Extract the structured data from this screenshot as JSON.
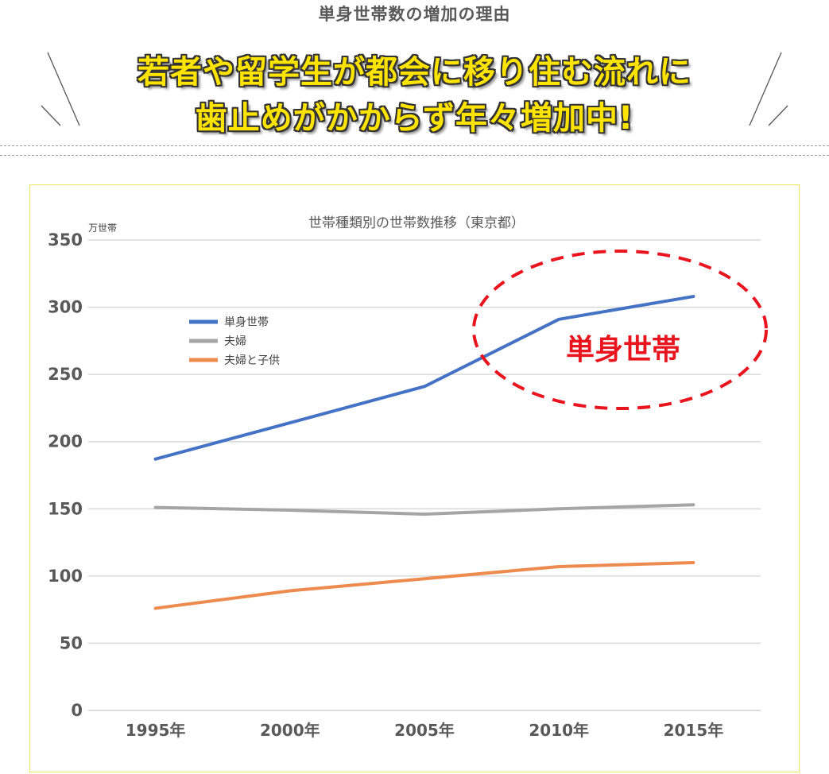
{
  "header": {
    "subtitle": "単身世帯数の増加の理由",
    "headline_line1": "若者や留学生が都会に移り住む流れに",
    "headline_line2": "歯止めがかからず年々増加中!"
  },
  "chart_data": {
    "type": "line",
    "title": "世帯種類別の世帯数推移（東京都）",
    "ylabel": "万世帯",
    "xlabel": "",
    "categories": [
      "1995年",
      "2000年",
      "2005年",
      "2010年",
      "2015年"
    ],
    "ylim": [
      0,
      350
    ],
    "yticks": [
      0,
      50,
      100,
      150,
      200,
      250,
      300,
      350
    ],
    "grid": true,
    "legend_position": "upper-left",
    "series": [
      {
        "name": "単身世帯",
        "color": "#4472c4",
        "values": [
          187,
          214,
          241,
          291,
          308
        ]
      },
      {
        "name": "夫婦",
        "color": "#a5a5a5",
        "values": [
          151,
          149,
          146,
          150,
          153
        ]
      },
      {
        "name": "夫婦と子供",
        "color": "#ed8b4f",
        "values": [
          76,
          89,
          98,
          107,
          110
        ]
      }
    ],
    "annotation": {
      "text": "単身世帯",
      "color": "#e8141e"
    }
  }
}
